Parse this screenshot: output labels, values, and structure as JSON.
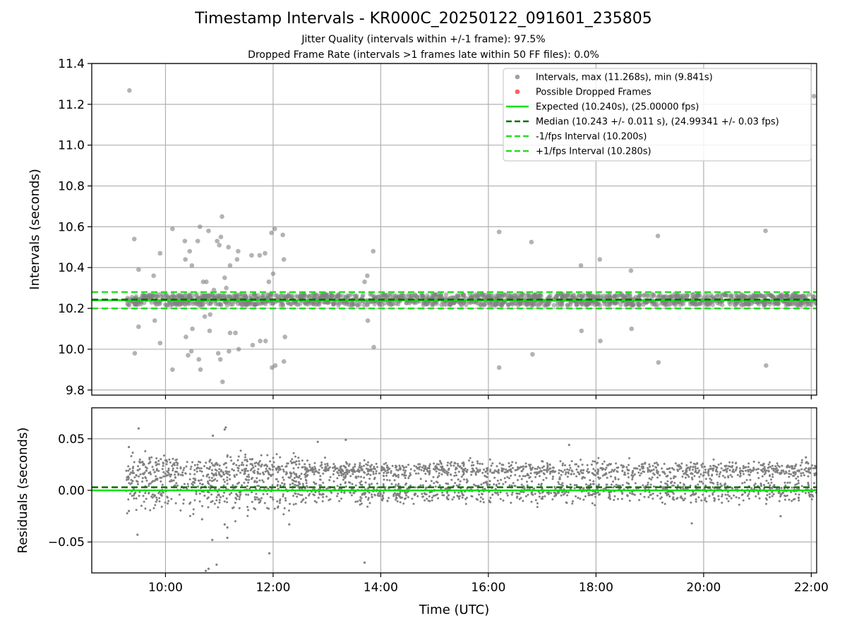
{
  "chart_data": {
    "type": "scatter",
    "title": "Timestamp Intervals - KR000C_20250122_091601_235805",
    "subtitle_lines": [
      "Jitter Quality (intervals within +/-1 frame): 97.5%",
      "Dropped Frame Rate (intervals >1 frames late within 50 FF files): 0.0%"
    ],
    "xlabel": "Time (UTC)",
    "x_ticks": [
      "10:00",
      "12:00",
      "14:00",
      "16:00",
      "18:00",
      "20:00",
      "22:00"
    ],
    "x_range_hours": [
      8.63,
      22.1
    ],
    "data_span_hours": [
      9.27,
      22.1
    ],
    "grid": true,
    "colors": {
      "intervals": "#808080",
      "dropped": "#ff3030",
      "expected": "#10e010",
      "median": "#007000",
      "fps_interval": "#20e020"
    },
    "panels": [
      {
        "id": "intervals",
        "ylabel": "Intervals (seconds)",
        "ylim": [
          9.775,
          11.4
        ],
        "y_ticks": [
          "9.8",
          "10.0",
          "10.2",
          "10.4",
          "10.6",
          "10.8",
          "11.0",
          "11.2",
          "11.4"
        ],
        "legend_location": "top-right",
        "legend": [
          {
            "label": "Intervals, max (11.268s), min (9.841s)",
            "kind": "dot",
            "color": "#a0a0a0"
          },
          {
            "label": "Possible Dropped Frames",
            "kind": "dot",
            "color": "#ff6060"
          },
          {
            "label": "Expected (10.240s), (25.00000 fps)",
            "kind": "solid",
            "color": "#10e010"
          },
          {
            "label": "Median (10.243 +/- 0.011 s), (24.99341 +/- 0.03 fps)",
            "kind": "dashed",
            "color": "#007000"
          },
          {
            "label": "-1/fps Interval (10.200s)",
            "kind": "dashed",
            "color": "#20e020"
          },
          {
            "label": "+1/fps Interval (10.280s)",
            "kind": "dashed",
            "color": "#20e020"
          }
        ],
        "reference_lines": [
          {
            "name": "expected",
            "value": 10.24,
            "style": "solid"
          },
          {
            "name": "median",
            "value": 10.243,
            "style": "dashed"
          },
          {
            "name": "minus_one_fps",
            "value": 10.2,
            "style": "dashed"
          },
          {
            "name": "plus_one_fps",
            "value": 10.28,
            "style": "dashed"
          }
        ],
        "band": [
          10.215,
          10.27
        ],
        "outliers": [
          {
            "t": 9.33,
            "v": 11.268
          },
          {
            "t": 22.05,
            "v": 11.24
          },
          {
            "t": 9.42,
            "v": 10.54
          },
          {
            "t": 9.43,
            "v": 9.98
          },
          {
            "t": 9.5,
            "v": 10.39
          },
          {
            "t": 9.5,
            "v": 10.11
          },
          {
            "t": 9.78,
            "v": 10.36
          },
          {
            "t": 9.8,
            "v": 10.14
          },
          {
            "t": 9.9,
            "v": 10.47
          },
          {
            "t": 9.9,
            "v": 10.03
          },
          {
            "t": 10.13,
            "v": 10.59
          },
          {
            "t": 10.13,
            "v": 9.9
          },
          {
            "t": 10.36,
            "v": 10.53
          },
          {
            "t": 10.37,
            "v": 10.44
          },
          {
            "t": 10.38,
            "v": 10.06
          },
          {
            "t": 10.42,
            "v": 9.97
          },
          {
            "t": 10.45,
            "v": 10.48
          },
          {
            "t": 10.48,
            "v": 9.99
          },
          {
            "t": 10.49,
            "v": 10.41
          },
          {
            "t": 10.5,
            "v": 10.1
          },
          {
            "t": 10.6,
            "v": 10.53
          },
          {
            "t": 10.62,
            "v": 9.95
          },
          {
            "t": 10.64,
            "v": 10.6
          },
          {
            "t": 10.65,
            "v": 9.9
          },
          {
            "t": 10.7,
            "v": 10.33
          },
          {
            "t": 10.73,
            "v": 10.16
          },
          {
            "t": 10.76,
            "v": 10.33
          },
          {
            "t": 10.8,
            "v": 10.58
          },
          {
            "t": 10.82,
            "v": 10.09
          },
          {
            "t": 10.83,
            "v": 10.17
          },
          {
            "t": 10.9,
            "v": 10.29
          },
          {
            "t": 10.96,
            "v": 10.53
          },
          {
            "t": 10.98,
            "v": 9.98
          },
          {
            "t": 11.0,
            "v": 10.51
          },
          {
            "t": 11.02,
            "v": 9.95
          },
          {
            "t": 11.03,
            "v": 10.55
          },
          {
            "t": 11.05,
            "v": 10.65
          },
          {
            "t": 11.06,
            "v": 9.84
          },
          {
            "t": 11.1,
            "v": 10.35
          },
          {
            "t": 11.13,
            "v": 10.3
          },
          {
            "t": 11.17,
            "v": 10.5
          },
          {
            "t": 11.18,
            "v": 9.99
          },
          {
            "t": 11.2,
            "v": 10.41
          },
          {
            "t": 11.2,
            "v": 10.08
          },
          {
            "t": 11.3,
            "v": 10.08
          },
          {
            "t": 11.33,
            "v": 10.44
          },
          {
            "t": 11.35,
            "v": 10.48
          },
          {
            "t": 11.36,
            "v": 10.0
          },
          {
            "t": 11.6,
            "v": 10.46
          },
          {
            "t": 11.62,
            "v": 10.02
          },
          {
            "t": 11.75,
            "v": 10.46
          },
          {
            "t": 11.76,
            "v": 10.04
          },
          {
            "t": 11.85,
            "v": 10.47
          },
          {
            "t": 11.86,
            "v": 10.04
          },
          {
            "t": 11.92,
            "v": 10.33
          },
          {
            "t": 11.97,
            "v": 10.57
          },
          {
            "t": 11.98,
            "v": 9.91
          },
          {
            "t": 12.0,
            "v": 10.37
          },
          {
            "t": 12.03,
            "v": 10.59
          },
          {
            "t": 12.04,
            "v": 9.92
          },
          {
            "t": 12.18,
            "v": 10.56
          },
          {
            "t": 12.2,
            "v": 10.44
          },
          {
            "t": 12.2,
            "v": 9.94
          },
          {
            "t": 12.22,
            "v": 10.06
          },
          {
            "t": 13.7,
            "v": 10.33
          },
          {
            "t": 13.75,
            "v": 10.36
          },
          {
            "t": 13.76,
            "v": 10.14
          },
          {
            "t": 13.86,
            "v": 10.48
          },
          {
            "t": 13.87,
            "v": 10.01
          },
          {
            "t": 16.2,
            "v": 10.575
          },
          {
            "t": 16.2,
            "v": 9.91
          },
          {
            "t": 16.8,
            "v": 10.525
          },
          {
            "t": 16.82,
            "v": 9.975
          },
          {
            "t": 17.72,
            "v": 10.41
          },
          {
            "t": 17.73,
            "v": 10.09
          },
          {
            "t": 18.07,
            "v": 10.44
          },
          {
            "t": 18.08,
            "v": 10.04
          },
          {
            "t": 18.65,
            "v": 10.385
          },
          {
            "t": 18.66,
            "v": 10.1
          },
          {
            "t": 19.15,
            "v": 10.555
          },
          {
            "t": 19.16,
            "v": 9.935
          },
          {
            "t": 21.15,
            "v": 10.58
          },
          {
            "t": 21.16,
            "v": 9.92
          }
        ]
      },
      {
        "id": "residuals",
        "ylabel": "Residuals (seconds)",
        "ylim": [
          -0.08,
          0.08
        ],
        "y_ticks": [
          "−0.05",
          "0.00",
          "0.05"
        ],
        "reference_lines": [
          {
            "name": "expected",
            "value": 0.0,
            "style": "solid"
          },
          {
            "name": "median",
            "value": 0.003,
            "style": "dashed"
          }
        ],
        "clusters": [
          {
            "center": 0.02,
            "spread": 0.004
          },
          {
            "center": 0.0,
            "spread": 0.006
          }
        ],
        "outliers": [
          {
            "t": 9.32,
            "v": 0.042
          },
          {
            "t": 9.32,
            "v": -0.02
          },
          {
            "t": 9.5,
            "v": 0.06
          },
          {
            "t": 9.48,
            "v": -0.043
          },
          {
            "t": 10.8,
            "v": -0.076
          },
          {
            "t": 10.75,
            "v": -0.078
          },
          {
            "t": 10.95,
            "v": -0.072
          },
          {
            "t": 10.87,
            "v": -0.048
          },
          {
            "t": 11.12,
            "v": 0.061
          },
          {
            "t": 11.1,
            "v": 0.059
          },
          {
            "t": 10.88,
            "v": 0.053
          },
          {
            "t": 11.15,
            "v": -0.046
          },
          {
            "t": 11.1,
            "v": -0.033
          },
          {
            "t": 11.15,
            "v": -0.036
          },
          {
            "t": 11.93,
            "v": -0.061
          },
          {
            "t": 13.7,
            "v": -0.07
          },
          {
            "t": 10.68,
            "v": -0.028
          },
          {
            "t": 12.3,
            "v": -0.033
          },
          {
            "t": 13.35,
            "v": 0.049
          },
          {
            "t": 12.83,
            "v": 0.047
          },
          {
            "t": 17.5,
            "v": 0.044
          },
          {
            "t": 19.78,
            "v": -0.032
          },
          {
            "t": 21.43,
            "v": -0.025
          },
          {
            "t": 21.9,
            "v": 0.032
          }
        ]
      }
    ]
  }
}
